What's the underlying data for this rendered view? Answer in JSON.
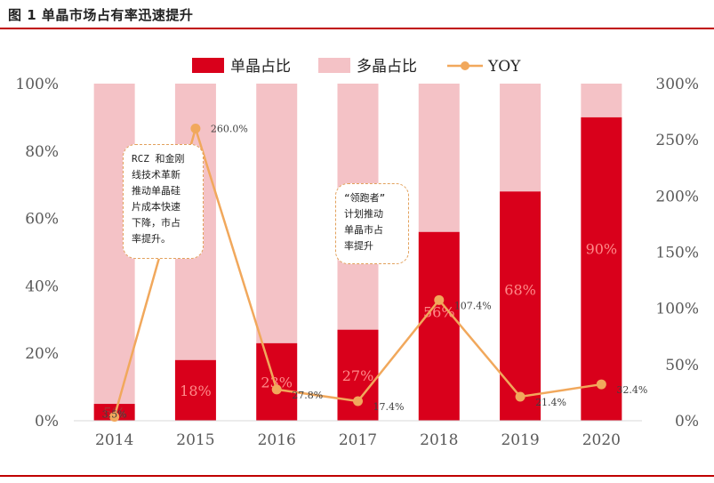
{
  "figure_title": "图 1 单晶市场占有率迅速提升",
  "colors": {
    "mono": "#d9001b",
    "poly": "#f4c2c6",
    "yoy": "#f1a85c",
    "rule": "#c00000"
  },
  "legend": {
    "mono": "单晶占比",
    "poly": "多晶占比",
    "yoy": "YOY"
  },
  "notes": {
    "left": "RCZ 和金刚\n线技术革新\n推动单晶硅\n片成本快速\n下降，市占\n率提升。",
    "right": "“领跑者”\n计划推动\n单晶市占\n率提升"
  },
  "chart_data": {
    "type": "bar",
    "stacked": true,
    "categories": [
      "2014",
      "2015",
      "2016",
      "2017",
      "2018",
      "2019",
      "2020"
    ],
    "series": [
      {
        "name": "单晶占比",
        "values": [
          5,
          18,
          23,
          27,
          56,
          68,
          90
        ],
        "labels": [
          "5%",
          "18%",
          "23%",
          "27%",
          "56%",
          "68%",
          "90%"
        ]
      },
      {
        "name": "多晶占比",
        "values": [
          95,
          82,
          77,
          73,
          44,
          32,
          10
        ]
      },
      {
        "name": "YOY",
        "axis": "right",
        "type": "line",
        "values": [
          3.5,
          260,
          27.8,
          17.4,
          107.4,
          21.4,
          32.4
        ],
        "labels": [
          "3.5%",
          "260.0%",
          "27.8%",
          "17.4%",
          "107.4%",
          "21.4%",
          "32.4%"
        ]
      }
    ],
    "left_axis": {
      "min": 0,
      "max": 100,
      "ticks": [
        "0%",
        "20%",
        "40%",
        "60%",
        "80%",
        "100%"
      ]
    },
    "right_axis": {
      "min": 0,
      "max": 300,
      "ticks": [
        "0%",
        "50%",
        "100%",
        "150%",
        "200%",
        "250%",
        "300%"
      ]
    },
    "grid": false,
    "legend_position": "top"
  }
}
